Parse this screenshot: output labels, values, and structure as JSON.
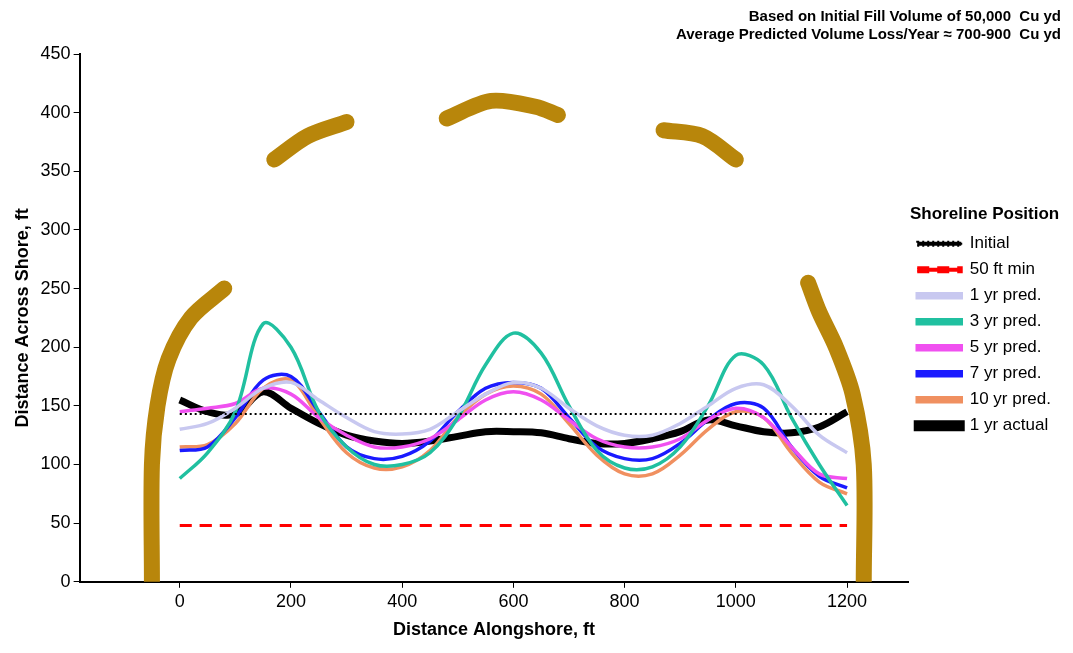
{
  "chart_data": {
    "type": "line",
    "annotations": [
      "Based on Initial Fill Volume of 50,000  Cu yd",
      "Average Predicted Volume Loss/Year ≈ 700-900  Cu yd"
    ],
    "x_label": "Distance Alongshore, ft",
    "y_label": "Distance Across Shore, ft",
    "legend_title": "Shoreline Position",
    "legend": "right",
    "grid": false,
    "xlim": [
      -180,
      1310
    ],
    "xticks": [
      0,
      200,
      400,
      600,
      800,
      1000,
      1200
    ],
    "ylim": [
      0,
      450
    ],
    "yticks": [
      0,
      50,
      100,
      150,
      200,
      250,
      300,
      350,
      400,
      450
    ],
    "x": [
      0,
      50,
      100,
      150,
      200,
      250,
      300,
      350,
      400,
      450,
      500,
      550,
      600,
      650,
      700,
      750,
      800,
      850,
      900,
      950,
      1000,
      1050,
      1100,
      1150,
      1200
    ],
    "series": [
      {
        "name": "Initial",
        "color": "#000000",
        "line_style": "dotted",
        "values": [
          143,
          143,
          143,
          143,
          143,
          143,
          143,
          143,
          143,
          143,
          143,
          143,
          143,
          143,
          143,
          143,
          143,
          143,
          143,
          143,
          143,
          143,
          143,
          143,
          143
        ]
      },
      {
        "name": "50 ft min",
        "color": "#ff0000",
        "line_style": "dashed",
        "values": [
          48,
          48,
          48,
          48,
          48,
          48,
          48,
          48,
          48,
          48,
          48,
          48,
          48,
          48,
          48,
          48,
          48,
          48,
          48,
          48,
          48,
          48,
          48,
          48,
          48
        ]
      },
      {
        "name": "1 yr pred.",
        "color": "#c8c8f0",
        "line_style": "solid",
        "values": [
          130,
          135,
          148,
          165,
          170,
          155,
          140,
          128,
          126,
          130,
          145,
          160,
          170,
          165,
          148,
          133,
          125,
          125,
          135,
          150,
          165,
          168,
          150,
          125,
          110
        ]
      },
      {
        "name": "3 yr pred.",
        "color": "#20c0a0",
        "line_style": "solid",
        "values": [
          88,
          110,
          145,
          220,
          200,
          145,
          115,
          100,
          100,
          110,
          140,
          185,
          212,
          195,
          150,
          112,
          97,
          98,
          115,
          150,
          193,
          185,
          140,
          100,
          65
        ]
      },
      {
        "name": "5 yr pred.",
        "color": "#f050f0",
        "line_style": "solid",
        "values": [
          145,
          148,
          152,
          165,
          160,
          140,
          125,
          115,
          115,
          122,
          138,
          155,
          162,
          155,
          138,
          122,
          115,
          115,
          122,
          138,
          148,
          140,
          115,
          92,
          88
        ]
      },
      {
        "name": "7 yr pred.",
        "color": "#1a1aff",
        "line_style": "solid",
        "values": [
          112,
          115,
          140,
          172,
          175,
          145,
          115,
          105,
          107,
          120,
          145,
          165,
          170,
          165,
          140,
          115,
          105,
          105,
          118,
          138,
          152,
          148,
          115,
          90,
          80
        ]
      },
      {
        "name": "10 yr pred.",
        "color": "#f09060",
        "line_style": "solid",
        "values": [
          115,
          117,
          135,
          165,
          172,
          140,
          110,
          97,
          98,
          112,
          140,
          160,
          167,
          160,
          135,
          108,
          92,
          92,
          108,
          130,
          145,
          140,
          110,
          85,
          75
        ]
      },
      {
        "name": "1 yr actual",
        "color": "#000000",
        "line_style": "solid",
        "values": [
          155,
          145,
          143,
          162,
          148,
          135,
          125,
          120,
          118,
          120,
          124,
          128,
          128,
          127,
          122,
          118,
          118,
          122,
          128,
          138,
          133,
          128,
          127,
          132,
          145
        ]
      }
    ],
    "structures": [
      {
        "color": "#b8860b",
        "x": [
          -50,
          -50,
          -40,
          -20,
          20,
          80
        ],
        "y": [
          0,
          100,
          150,
          190,
          225,
          250
        ]
      },
      {
        "color": "#b8860b",
        "x": [
          170,
          230,
          300
        ],
        "y": [
          360,
          380,
          392
        ]
      },
      {
        "color": "#b8860b",
        "x": [
          480,
          560,
          640,
          680
        ],
        "y": [
          395,
          410,
          405,
          398
        ]
      },
      {
        "color": "#b8860b",
        "x": [
          870,
          940,
          1000
        ],
        "y": [
          385,
          380,
          360
        ]
      },
      {
        "color": "#b8860b",
        "x": [
          1230,
          1230,
          1210,
          1180,
          1150,
          1130
        ],
        "y": [
          0,
          100,
          160,
          200,
          230,
          255
        ]
      }
    ]
  }
}
